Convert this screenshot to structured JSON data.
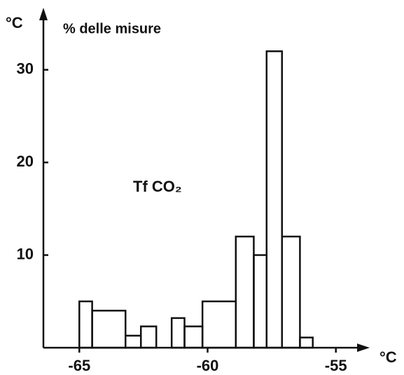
{
  "chart_data": {
    "type": "histogram",
    "y_unit_label": "°C",
    "ylabel": "% delle misure",
    "annotation": "Tf CO₂",
    "xlabel": "°C",
    "bins": [
      -65,
      -64.5,
      -63.2,
      -62.6,
      -62.0,
      -61.4,
      -60.9,
      -60.2,
      -58.9,
      -58.2,
      -57.7,
      -57.1,
      -56.4,
      -55.9
    ],
    "counts": [
      5,
      4,
      1.3,
      2.3,
      0,
      3.2,
      2.3,
      5,
      12,
      10,
      32,
      12,
      1.1
    ],
    "color": "#111111",
    "xlim": [
      -66.4,
      -53.9
    ],
    "ylim": [
      0,
      36.4
    ],
    "xticks": [
      -65,
      -60,
      -55
    ],
    "yticks": [
      10,
      20,
      30
    ]
  }
}
